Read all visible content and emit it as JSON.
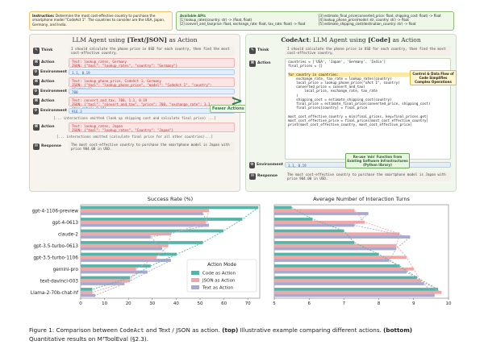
{
  "instruction": {
    "label": "Instruction:",
    "text": "Determine the most cost-effective country to purchase the smartphone model \"CodeAct 1\". The countries to consider are the USA, Japan, Germany, and India."
  },
  "apis": {
    "title": "Available APIs",
    "items": [
      "[1] lookup_rates(country: str) -> (float, float)",
      "[2] convert_and_tax(price: float, exchange_rate: float, tax_rate: float) -> float",
      "[3] estimate_final_price(converted_price: float, shipping_cost: float) -> float",
      "[4] lookup_phone_price(model: str, country: str) -> float",
      "[5] estimate_shipping_cost(destination_country: str) -> float"
    ]
  },
  "left": {
    "title_prefix": "LLM Agent using ",
    "title_bold": "[Text/JSON]",
    "title_suffix": " as Action",
    "think_label": "Think",
    "think_text": "I should calculate the phone price in USD for each country, then find the most cost-effective country.",
    "action_label": "Action",
    "env_label": "Environment",
    "response_label": "Response",
    "a1_text": "Text: lookup_rates, Germany",
    "a1_json": "JSON: {\"tool\": \"lookup_rates\", \"country\": \"Germany\"}",
    "e1": "1.1, 0.19",
    "a2_text": "Text: lookup_phone_price, CodeAct 1, Germany",
    "a2_json": "JSON: {\"tool\": \"lookup_phone_price\", \"model\": \"CodeAct 1\", \"country\": \"Germany\"}",
    "e2": "700",
    "a3_text": "Text: convert_and_tax, 700, 1.1, 0.19",
    "a3_json": "JSON: {\"tool\": \"convert_and_tax\", \"price\": 700, \"exchange_rate\": 1.1, \"tax_rate\": 0.19}",
    "e3": "916.3",
    "omit1": "[... interactions omitted (look up shipping cost and calculate final price) ...]",
    "a4_text": "Text: lookup_rates, Japan",
    "a4_json": "JSON: {\"tool\": \"lookup_rates\", \"Country\": \"Japan\"}",
    "omit2": "[... interactions omitted (calculate final price for all other countries)...]",
    "response": "The most cost-effective country to purchase the smartphone model is Japan with price 904.00 in USD."
  },
  "right": {
    "title_prefix": "CodeAct",
    "title_mid": ": LLM Agent using ",
    "title_bold": "[Code]",
    "title_suffix": " as Action",
    "think_text": "I should calculate the phone price in USD for each country, then find the most cost-effective country.",
    "code_lines": [
      "countries = ['USA', 'Japan', 'Germany', 'India']",
      "final_prices = {}",
      "",
      "for country in countries:",
      "    exchange_rate, tax_rate = lookup_rates(country)",
      "    local_price = lookup_phone_price(\"xAct 1\", country)",
      "    converted_price = convert_and_tax(",
      "        local_price, exchange_rate, tax_rate",
      "    )",
      "    shipping_cost = estimate_shipping_cost(country)",
      "    final_price = estimate_final_price(converted_price, shipping_cost)",
      "    final_prices[country] = final_price",
      "",
      "most_cost_effective_country = min(final_prices, key=final_prices.get)",
      "most_cost_effective_price = final_prices[most_cost_effective_country]",
      "print(most_cost_effective_country, most_cost_effective_price)"
    ],
    "env": "1.1, 0.19",
    "response": "The most cost-effective country to purchase the smartphone model is Japan with price 904.00 in USD.",
    "callout1": "Control & Data Flow of Code Simplifies Complex Operations",
    "callout2": "Re-use 'min' Function from Existing Software Infrastructures (Python library)",
    "fewer": "Fewer Actions Required!"
  },
  "chart_data": [
    {
      "type": "bar",
      "title": "Success Rate (%)",
      "categories": [
        "gpt-4-1106-preview",
        "gpt-4-0613",
        "claude-2",
        "gpt-3.5-turbo-0613",
        "gpt-3.5-turbo-1106",
        "gemini-pro",
        "text-davinci-003",
        "Llama-2-70b-chat-hf"
      ],
      "series": [
        {
          "name": "Code as Action",
          "values": [
            74.4,
            67.7,
            59.8,
            51.2,
            40.2,
            29.3,
            20.7,
            4.9
          ]
        },
        {
          "name": "JSON as Action",
          "values": [
            53.7,
            52.4,
            37.8,
            36.6,
            31.7,
            23.2,
            20.7,
            4.9
          ]
        },
        {
          "name": "Text as Action",
          "values": [
            51.2,
            53.7,
            29.3,
            34.1,
            37.8,
            28.0,
            18.3,
            6.1
          ]
        }
      ],
      "xlim": [
        0,
        75
      ],
      "xticks": [
        0,
        10,
        20,
        30,
        40,
        50,
        60,
        70
      ],
      "legend_title": "Action Mode",
      "legend": "center-right"
    },
    {
      "type": "bar",
      "title": "Average Number of Interaction Turns",
      "categories": [
        "gpt-4-1106-preview",
        "gpt-4-0613",
        "claude-2",
        "gpt-3.5-turbo-0613",
        "gpt-3.5-turbo-1106",
        "gemini-pro",
        "text-davinci-003",
        "Llama-2-70b-chat-hf"
      ],
      "series": [
        {
          "name": "Code as Action",
          "values": [
            5.5,
            6.1,
            7.0,
            7.3,
            8.0,
            8.6,
            9.1,
            9.7
          ]
        },
        {
          "name": "JSON as Action",
          "values": [
            7.3,
            7.6,
            8.6,
            8.5,
            8.8,
            9.0,
            9.2,
            9.8
          ]
        },
        {
          "name": "Text as Action",
          "values": [
            7.7,
            7.3,
            8.9,
            8.5,
            8.3,
            8.8,
            9.3,
            9.6
          ]
        }
      ],
      "xlim": [
        5,
        10
      ],
      "xticks": [
        5,
        6,
        7,
        8,
        9,
        10
      ]
    }
  ],
  "colors": {
    "code": "#55b3a8",
    "json": "#f2a6a6",
    "text": "#a8a9cf"
  },
  "caption": {
    "prefix": "Figure 1: Comparison between ",
    "codeact": "CodeAct",
    "mid": " and Text / JSON as action. ",
    "top": "(top)",
    "mid2": " Illustrative example comparing different actions. ",
    "bottom": "(bottom)",
    "line2": "Quantitative results on M³ToolEval (§2.3)."
  }
}
